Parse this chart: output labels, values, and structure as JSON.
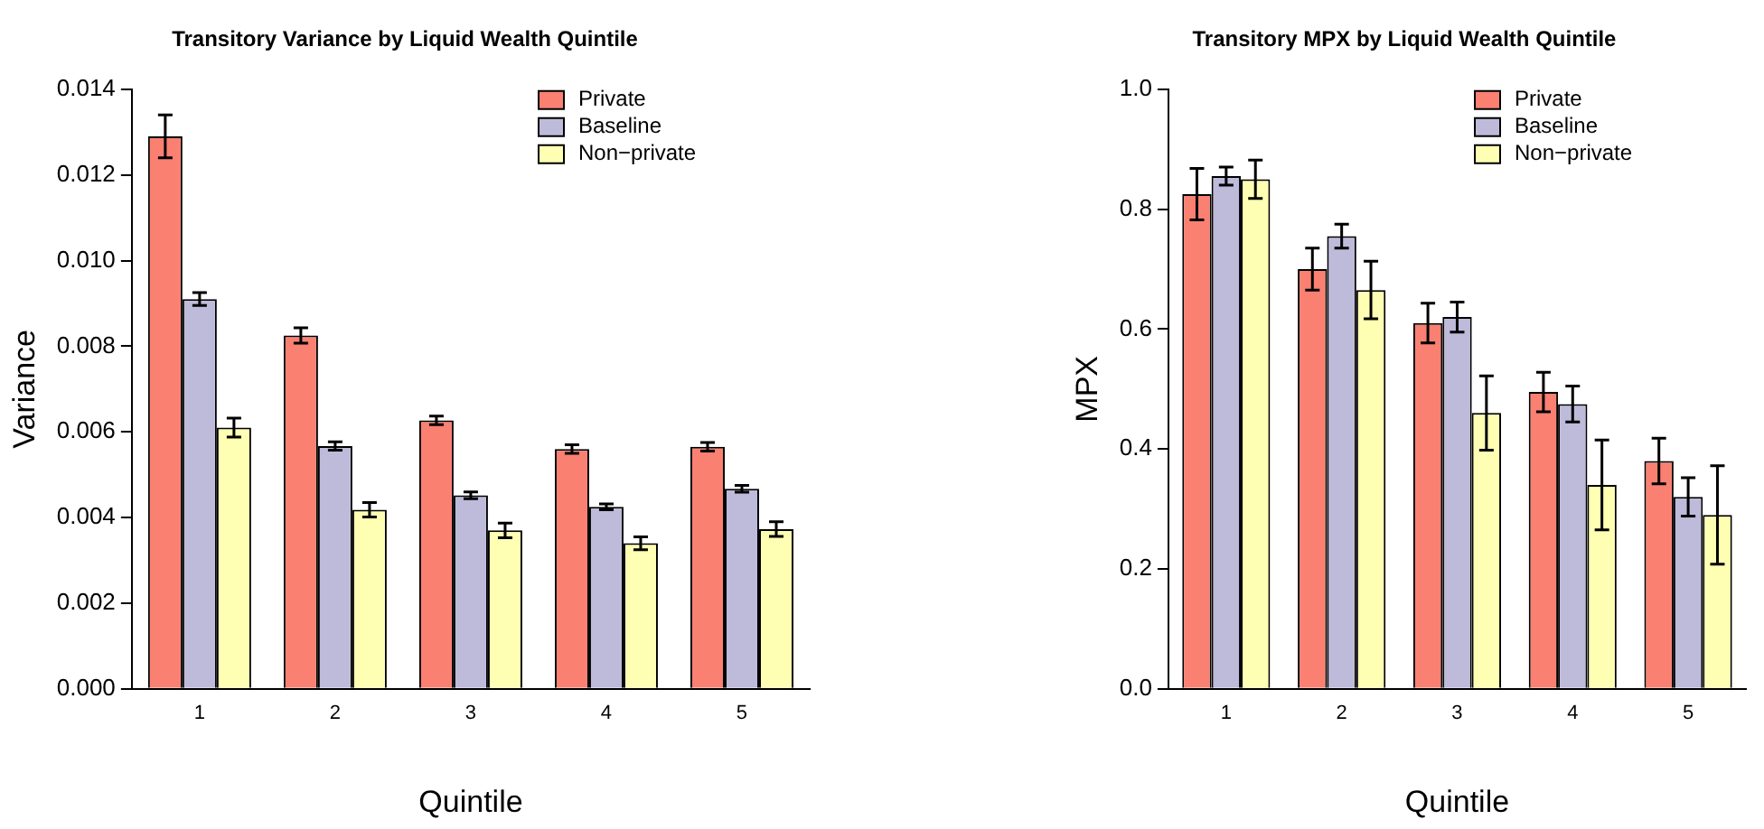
{
  "chart_data": [
    {
      "type": "bar",
      "title": "Transitory Variance by Liquid Wealth Quintile",
      "xlabel": "Quintile",
      "ylabel": "Variance",
      "categories": [
        "1",
        "2",
        "3",
        "4",
        "5"
      ],
      "ylim": [
        0,
        0.014
      ],
      "yticks": [
        {
          "value": 0,
          "label": "0.000"
        },
        {
          "value": 0.002,
          "label": "0.002"
        },
        {
          "value": 0.004,
          "label": "0.004"
        },
        {
          "value": 0.006,
          "label": "0.006"
        },
        {
          "value": 0.008,
          "label": "0.008"
        },
        {
          "value": 0.01,
          "label": "0.010"
        },
        {
          "value": 0.012,
          "label": "0.012"
        },
        {
          "value": 0.014,
          "label": "0.014"
        }
      ],
      "grid": false,
      "legend": "top right",
      "series": [
        {
          "name": "Private",
          "color": "#fa8072",
          "values": [
            0.0129,
            0.00825,
            0.00627,
            0.0056,
            0.00565
          ],
          "errors": [
            0.0005,
            0.00018,
            0.0001,
            0.0001,
            0.0001
          ]
        },
        {
          "name": "Baseline",
          "color": "#bebada",
          "values": [
            0.0091,
            0.00567,
            0.00452,
            0.00425,
            0.00467
          ],
          "errors": [
            0.00015,
            0.0001,
            8e-05,
            7e-05,
            8e-05
          ]
        },
        {
          "name": "Non−private",
          "color": "#ffffb3",
          "values": [
            0.0061,
            0.00418,
            0.0037,
            0.0034,
            0.00373
          ],
          "errors": [
            0.00022,
            0.00017,
            0.00017,
            0.00015,
            0.00017
          ]
        }
      ]
    },
    {
      "type": "bar",
      "title": "Transitory MPX by Liquid Wealth Quintile",
      "xlabel": "Quintile",
      "ylabel": "MPX",
      "categories": [
        "1",
        "2",
        "3",
        "4",
        "5"
      ],
      "ylim": [
        0,
        1
      ],
      "yticks": [
        {
          "value": 0,
          "label": "0.0"
        },
        {
          "value": 0.2,
          "label": "0.2"
        },
        {
          "value": 0.4,
          "label": "0.4"
        },
        {
          "value": 0.6,
          "label": "0.6"
        },
        {
          "value": 0.8,
          "label": "0.8"
        },
        {
          "value": 1,
          "label": "1.0"
        }
      ],
      "grid": false,
      "legend": "top right",
      "series": [
        {
          "name": "Private",
          "color": "#fa8072",
          "values": [
            0.825,
            0.7,
            0.61,
            0.495,
            0.38
          ],
          "errors": [
            0.043,
            0.035,
            0.033,
            0.033,
            0.038
          ]
        },
        {
          "name": "Baseline",
          "color": "#bebada",
          "values": [
            0.855,
            0.755,
            0.62,
            0.475,
            0.32
          ],
          "errors": [
            0.015,
            0.02,
            0.025,
            0.03,
            0.032
          ]
        },
        {
          "name": "Non−private",
          "color": "#ffffb3",
          "values": [
            0.85,
            0.665,
            0.46,
            0.34,
            0.29
          ],
          "errors": [
            0.032,
            0.048,
            0.062,
            0.075,
            0.082
          ]
        }
      ]
    }
  ]
}
